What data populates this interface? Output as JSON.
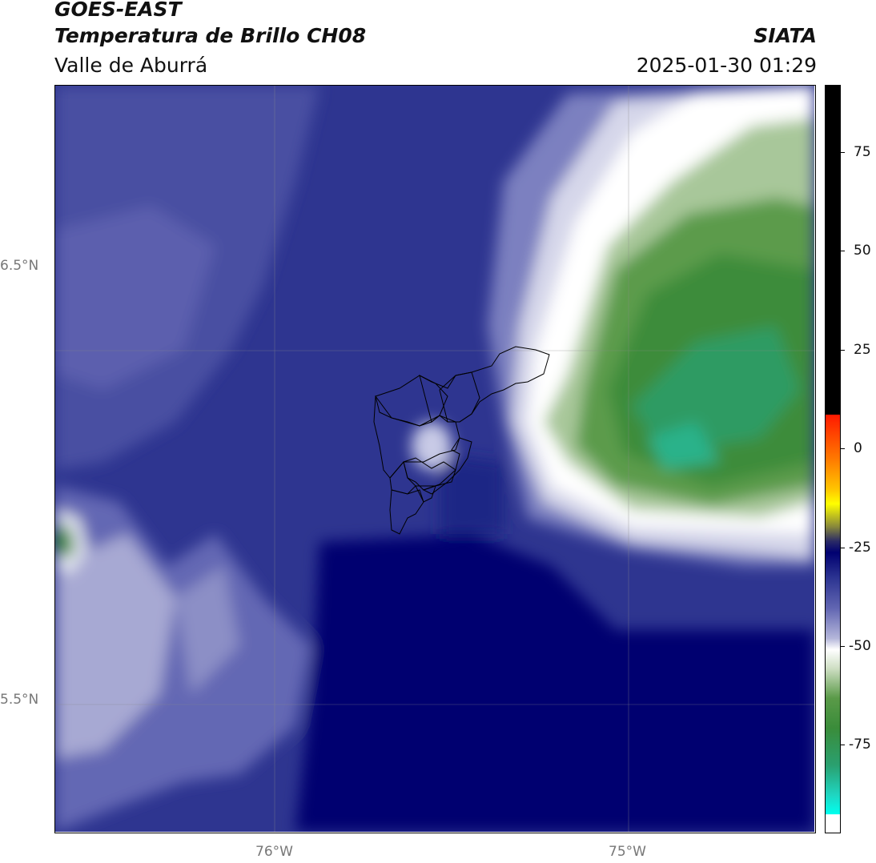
{
  "header": {
    "satellite": "GOES-EAST",
    "product": "Temperatura de Brillo CH08",
    "region": "Valle de Aburrá",
    "agency": "SIATA",
    "datetime": "2025-01-30 01:29"
  },
  "map": {
    "lat_labels": [
      "6.5°N",
      "5.5°N"
    ],
    "lon_labels": [
      "76°W",
      "75°W"
    ],
    "overlay": "municipality boundaries of Valle de Aburrá"
  },
  "colorbar": {
    "ticks": [
      "75",
      "50",
      "25",
      "0",
      "-25",
      "-50",
      "-75"
    ],
    "colors": {
      "black_segment": "#000000",
      "warm": [
        "#ff2a00",
        "#ff8800",
        "#ffcc00",
        "#ffff00",
        "#666633"
      ],
      "cold_blue": [
        "#000070",
        "#2d3592",
        "#5a60aa",
        "#a7a9d3",
        "#ffffff"
      ],
      "green": [
        "#4d8a3c",
        "#3a8c3a",
        "#2da06a",
        "#1fd6c2",
        "#00ffee"
      ],
      "bottom": "#ffffff"
    }
  }
}
